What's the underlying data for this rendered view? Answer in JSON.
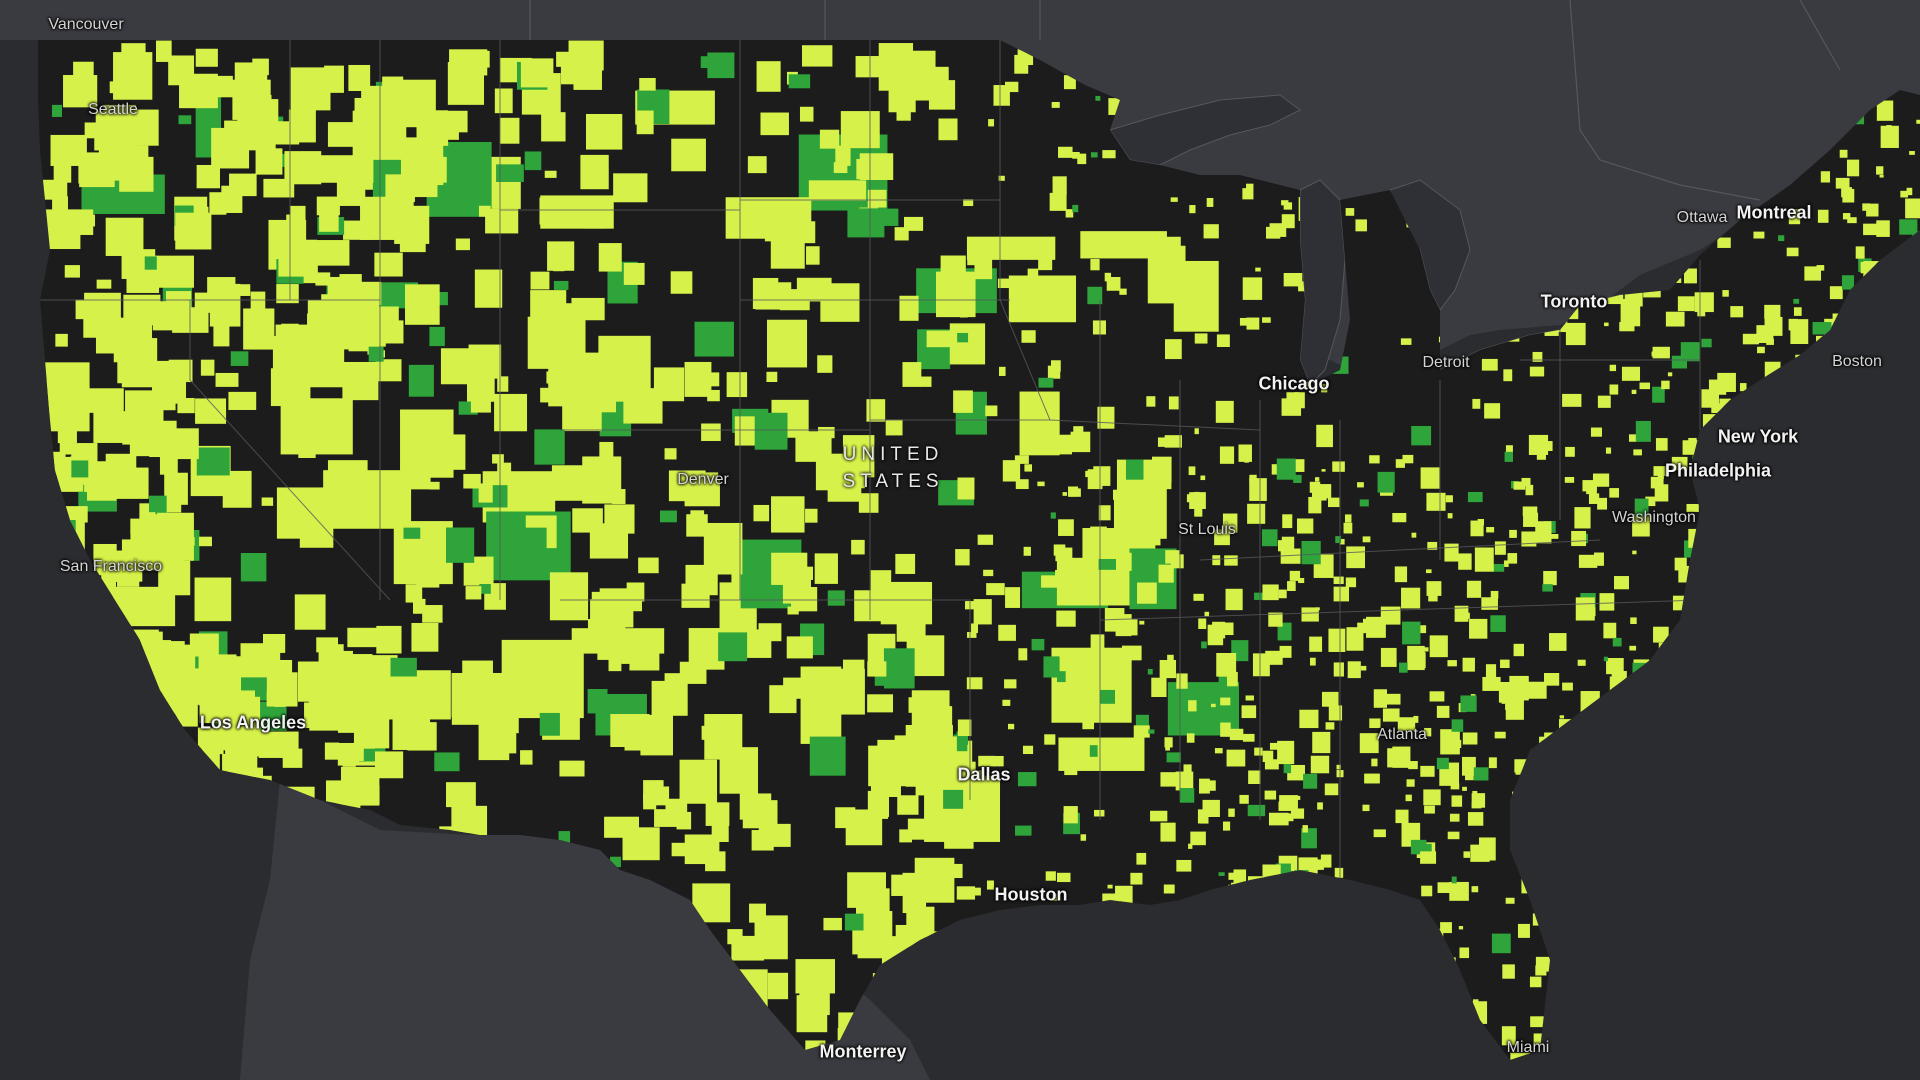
{
  "colors": {
    "background": "#2b2c30",
    "land_outside_us": "#3a3b40",
    "lake": "#2f3035",
    "us_base": "#1c1c1c",
    "class_light": "#d6f24a",
    "class_green": "#2ea43a",
    "border": "#55575c"
  },
  "country_label": {
    "line1": "UNITED",
    "line2": "STATES"
  },
  "cities": [
    {
      "id": "vancouver",
      "label": "Vancouver",
      "size": "minor"
    },
    {
      "id": "seattle",
      "label": "Seattle",
      "size": "minor"
    },
    {
      "id": "san-francisco",
      "label": "San Francisco",
      "size": "minor"
    },
    {
      "id": "los-angeles",
      "label": "Los Angeles",
      "size": "major"
    },
    {
      "id": "denver",
      "label": "Denver",
      "size": "minor"
    },
    {
      "id": "dallas",
      "label": "Dallas",
      "size": "major"
    },
    {
      "id": "houston",
      "label": "Houston",
      "size": "major"
    },
    {
      "id": "monterrey",
      "label": "Monterrey",
      "size": "major"
    },
    {
      "id": "st-louis",
      "label": "St Louis",
      "size": "minor"
    },
    {
      "id": "chicago",
      "label": "Chicago",
      "size": "major"
    },
    {
      "id": "detroit",
      "label": "Detroit",
      "size": "minor"
    },
    {
      "id": "toronto",
      "label": "Toronto",
      "size": "major"
    },
    {
      "id": "ottawa",
      "label": "Ottawa",
      "size": "minor"
    },
    {
      "id": "montreal",
      "label": "Montreal",
      "size": "major"
    },
    {
      "id": "boston",
      "label": "Boston",
      "size": "minor"
    },
    {
      "id": "new-york",
      "label": "New York",
      "size": "major"
    },
    {
      "id": "philadelphia",
      "label": "Philadelphia",
      "size": "major"
    },
    {
      "id": "washington",
      "label": "Washington",
      "size": "minor"
    },
    {
      "id": "atlanta",
      "label": "Atlanta",
      "size": "minor"
    },
    {
      "id": "miami",
      "label": "Miami",
      "size": "minor"
    }
  ]
}
